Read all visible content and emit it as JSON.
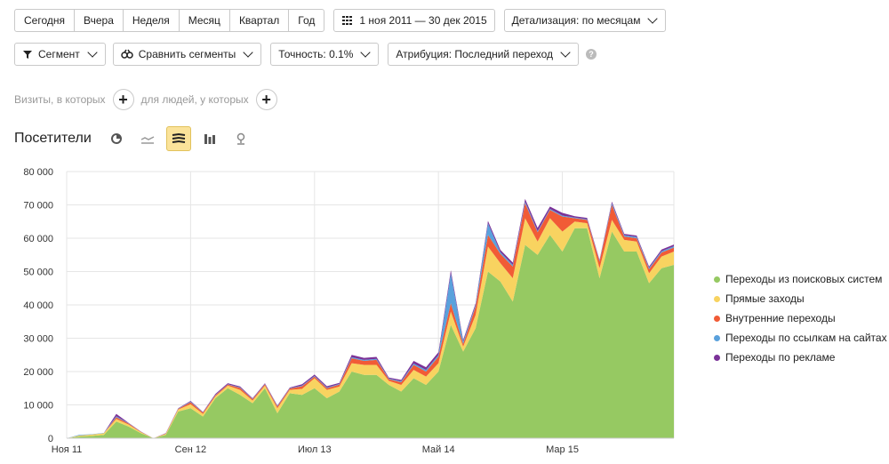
{
  "period_tabs": [
    "Сегодня",
    "Вчера",
    "Неделя",
    "Месяц",
    "Квартал",
    "Год"
  ],
  "date_range": "1 ноя 2011 — 30 дек 2015",
  "detail_label": "Детализация: по месяцам",
  "segment_label": "Сегмент",
  "compare_label": "Сравнить сегменты",
  "accuracy_label": "Точность: 0.1%",
  "attribution_label": "Атрибуция: Последний переход",
  "help_glyph": "?",
  "filters": {
    "visits_label": "Визиты, в которых",
    "people_label": "для людей, у которых"
  },
  "chart_title": "Посетители",
  "view_icons": [
    "pie-chart-icon",
    "line-chart-icon",
    "stacked-area-icon",
    "bar-chart-icon",
    "map-icon"
  ],
  "colors": {
    "search": "#96c962",
    "direct": "#f8d360",
    "internal": "#f15b36",
    "links": "#5aa1dc",
    "ads": "#7b3298",
    "grid": "#e6e6e6"
  },
  "chart_data": {
    "type": "area",
    "stacked": true,
    "x": [
      "Ноя 11",
      "Дек 11",
      "Янв 12",
      "Фев 12",
      "Мар 12",
      "Апр 12",
      "Май 12",
      "Июн 12",
      "Июл 12",
      "Авг 12",
      "Сен 12",
      "Окт 12",
      "Ноя 12",
      "Дек 12",
      "Янв 13",
      "Фев 13",
      "Мар 13",
      "Апр 13",
      "Май 13",
      "Июн 13",
      "Июл 13",
      "Авг 13",
      "Сен 13",
      "Окт 13",
      "Ноя 13",
      "Дек 13",
      "Янв 14",
      "Фев 14",
      "Мар 14",
      "Апр 14",
      "Май 14",
      "Июн 14",
      "Июл 14",
      "Авг 14",
      "Сен 14",
      "Окт 14",
      "Ноя 14",
      "Дек 14",
      "Янв 15",
      "Фев 15",
      "Мар 15",
      "Апр 15",
      "Май 15",
      "Июн 15",
      "Июл 15",
      "Авг 15",
      "Сен 15",
      "Окт 15",
      "Ноя 15",
      "Дек 15"
    ],
    "x_tick_labels": [
      "Ноя 11",
      "Сен 12",
      "Июл 13",
      "Май 14",
      "Мар 15"
    ],
    "x_tick_index": [
      0,
      10,
      20,
      30,
      40
    ],
    "ylim": [
      0,
      80000
    ],
    "yticks": [
      0,
      10000,
      20000,
      30000,
      40000,
      50000,
      60000,
      70000,
      80000
    ],
    "ytick_labels": [
      "0",
      "10 000",
      "20 000",
      "30 000",
      "40 000",
      "50 000",
      "60 000",
      "70 000",
      "80 000"
    ],
    "grid": true,
    "legend_position": "right",
    "series": [
      {
        "name": "Переходы из поисковых систем",
        "key": "search",
        "values": [
          0,
          500,
          700,
          1000,
          5000,
          3500,
          1500,
          0,
          1000,
          8000,
          9000,
          6500,
          12000,
          15000,
          13000,
          10500,
          15000,
          7500,
          13500,
          13000,
          15000,
          12000,
          14000,
          20000,
          19000,
          19000,
          16000,
          14000,
          18000,
          16000,
          20000,
          34000,
          26000,
          33000,
          50000,
          47000,
          41000,
          58000,
          55000,
          61000,
          56000,
          63000,
          63000,
          48000,
          62000,
          56000,
          56000,
          46500,
          51000,
          52000
        ]
      },
      {
        "name": "Прямые заходы",
        "key": "direct",
        "values": [
          0,
          300,
          400,
          500,
          800,
          600,
          300,
          0,
          300,
          600,
          1200,
          800,
          600,
          800,
          1500,
          800,
          800,
          1500,
          1000,
          1800,
          3000,
          2500,
          1500,
          2500,
          3000,
          3000,
          1200,
          2000,
          2500,
          2500,
          2500,
          4000,
          1500,
          4000,
          7500,
          5500,
          7000,
          8000,
          4000,
          5000,
          6000,
          2000,
          1500,
          3000,
          3500,
          3500,
          3000,
          3000,
          3500,
          4000
        ]
      },
      {
        "name": "Внутренние переходы",
        "key": "internal",
        "values": [
          0,
          0,
          0,
          0,
          500,
          300,
          100,
          0,
          100,
          200,
          600,
          400,
          300,
          300,
          600,
          400,
          400,
          500,
          400,
          800,
          500,
          500,
          600,
          1500,
          1200,
          1500,
          500,
          800,
          1500,
          1500,
          2000,
          2500,
          800,
          2500,
          3500,
          2800,
          3500,
          4500,
          2800,
          2500,
          4500,
          1000,
          1000,
          2000,
          4500,
          1000,
          1000,
          1200,
          1200,
          1200
        ]
      },
      {
        "name": "Переходы по ссылкам на сайтах",
        "key": "links",
        "values": [
          0,
          200,
          100,
          100,
          300,
          100,
          50,
          0,
          50,
          100,
          200,
          100,
          100,
          100,
          150,
          100,
          100,
          150,
          100,
          200,
          200,
          200,
          200,
          300,
          300,
          300,
          200,
          300,
          400,
          500,
          500,
          9000,
          700,
          500,
          3500,
          500,
          500,
          500,
          300,
          300,
          300,
          200,
          200,
          200,
          500,
          400,
          400,
          400,
          400,
          400
        ]
      },
      {
        "name": "Переходы по рекламе",
        "key": "ads",
        "values": [
          0,
          0,
          0,
          0,
          700,
          100,
          50,
          0,
          100,
          100,
          200,
          100,
          300,
          300,
          300,
          200,
          200,
          200,
          200,
          400,
          400,
          400,
          300,
          700,
          600,
          600,
          300,
          400,
          800,
          800,
          800,
          900,
          500,
          500,
          700,
          700,
          700,
          800,
          1000,
          700,
          800,
          400,
          400,
          300,
          500,
          400,
          400,
          400,
          500,
          500
        ]
      }
    ]
  }
}
